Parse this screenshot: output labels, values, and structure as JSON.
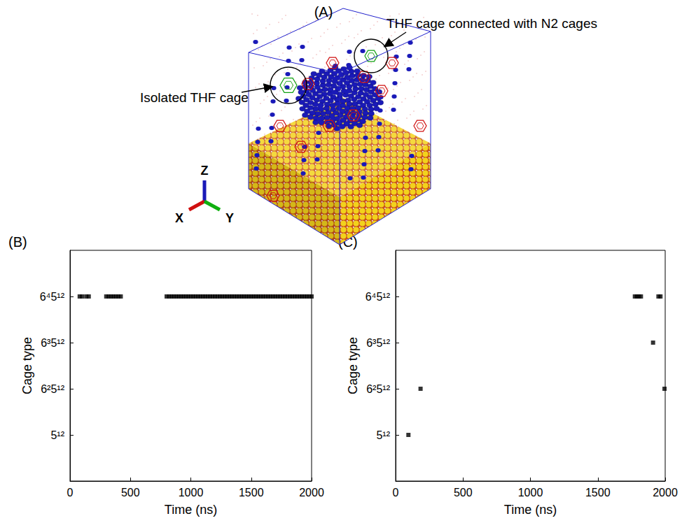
{
  "figure_a": {
    "title": "(A)",
    "annotations": [
      "Isolated THF cage",
      "THF cage connected with N2 cages"
    ],
    "axes": [
      "X",
      "Y",
      "Z"
    ]
  },
  "chart_data": [
    {
      "type": "scatter",
      "title": "(B)",
      "x_label": "Time (ns)",
      "y_label": "Cage type",
      "xlim": [
        0,
        2000
      ],
      "xticks": [
        0,
        500,
        1000,
        1500,
        2000
      ],
      "ylim": [
        0,
        5
      ],
      "yticks": [
        {
          "value": 1,
          "label": "5¹²"
        },
        {
          "value": 2,
          "label": "6²5¹²"
        },
        {
          "value": 3,
          "label": "6³5¹²"
        },
        {
          "value": 4,
          "label": "6⁴5¹²"
        }
      ],
      "color": "#000000",
      "marker": "square",
      "grid": false,
      "x": [
        80,
        100,
        135,
        155,
        300,
        320,
        340,
        360,
        380,
        400,
        420,
        800,
        820,
        840,
        860,
        880,
        900,
        920,
        940,
        960,
        980,
        1000,
        1020,
        1040,
        1060,
        1080,
        1100,
        1120,
        1140,
        1160,
        1180,
        1200,
        1220,
        1240,
        1260,
        1280,
        1300,
        1320,
        1340,
        1360,
        1380,
        1400,
        1420,
        1440,
        1460,
        1480,
        1500,
        1520,
        1540,
        1560,
        1580,
        1600,
        1620,
        1640,
        1660,
        1680,
        1700,
        1720,
        1740,
        1760,
        1780,
        1800,
        1820,
        1840,
        1860,
        1880,
        1900,
        1920,
        1940,
        1960,
        1980,
        2000
      ],
      "values": [
        4,
        4,
        4,
        4,
        4,
        4,
        4,
        4,
        4,
        4,
        4,
        4,
        4,
        4,
        4,
        4,
        4,
        4,
        4,
        4,
        4,
        4,
        4,
        4,
        4,
        4,
        4,
        4,
        4,
        4,
        4,
        4,
        4,
        4,
        4,
        4,
        4,
        4,
        4,
        4,
        4,
        4,
        4,
        4,
        4,
        4,
        4,
        4,
        4,
        4,
        4,
        4,
        4,
        4,
        4,
        4,
        4,
        4,
        4,
        4,
        4,
        4,
        4,
        4,
        4,
        4,
        4,
        4,
        4,
        4,
        4,
        4
      ]
    },
    {
      "type": "scatter",
      "title": "(C)",
      "x_label": "Time (ns)",
      "y_label": "Cage type",
      "xlim": [
        0,
        2000
      ],
      "xticks": [
        0,
        500,
        1000,
        1500,
        2000
      ],
      "ylim": [
        0,
        5
      ],
      "yticks": [
        {
          "value": 1,
          "label": "5¹²"
        },
        {
          "value": 2,
          "label": "6²5¹²"
        },
        {
          "value": 3,
          "label": "6³5¹²"
        },
        {
          "value": 4,
          "label": "6⁴5¹²"
        }
      ],
      "color": "#000000",
      "marker": "square",
      "grid": false,
      "x": [
        95,
        185,
        1775,
        1790,
        1805,
        1820,
        1910,
        1950,
        1965,
        1995
      ],
      "values": [
        1,
        2,
        4,
        4,
        4,
        4,
        3,
        4,
        4,
        2
      ]
    }
  ]
}
